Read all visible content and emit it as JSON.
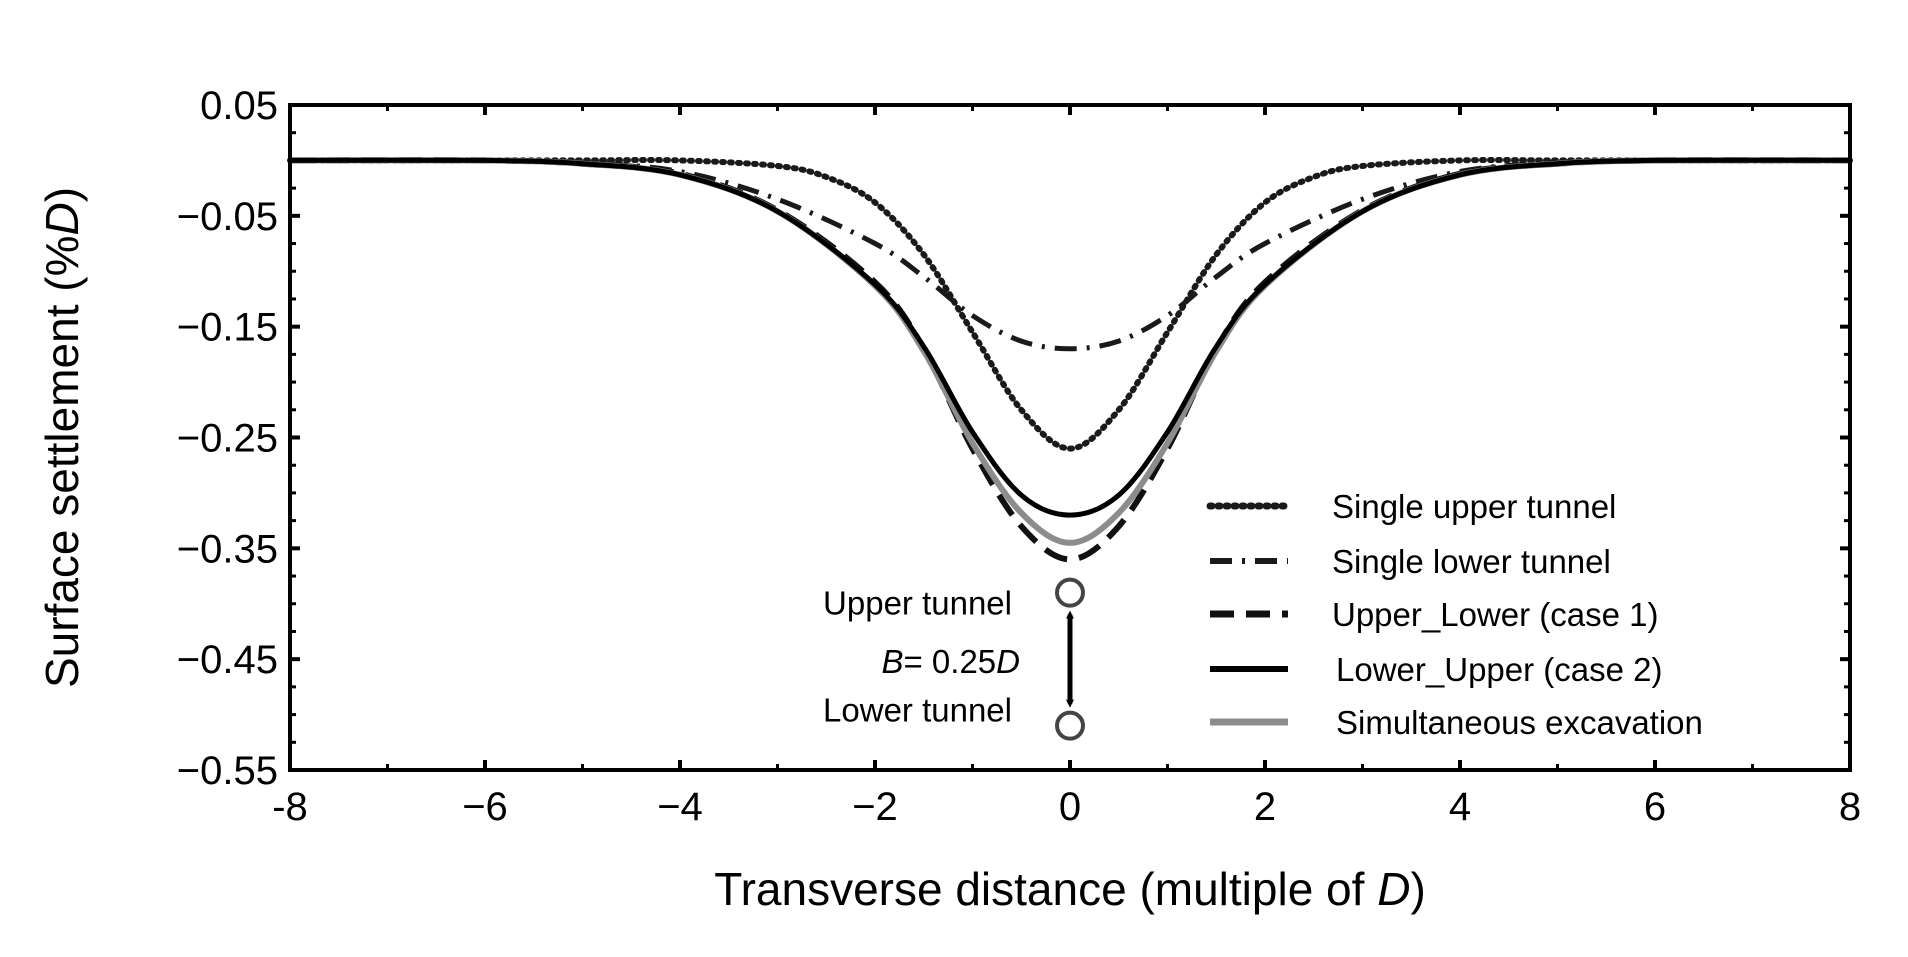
{
  "chart_data": {
    "type": "line",
    "title": "",
    "xlabel": {
      "prefix": "Transverse distance (multiple of ",
      "var": "D",
      "suffix": ")"
    },
    "ylabel": {
      "prefix": "Surface settlement (%",
      "var": "D",
      "suffix": ")"
    },
    "xlim": [
      -8,
      8
    ],
    "ylim": [
      -0.55,
      0.05
    ],
    "xticks": [
      -8,
      -6,
      -4,
      -2,
      0,
      2,
      4,
      6,
      8
    ],
    "xtick_labels": [
      "-8",
      "−6",
      "−4",
      "−2",
      "0",
      "2",
      "4",
      "6",
      "8"
    ],
    "yticks": [
      0.05,
      -0.05,
      -0.15,
      -0.25,
      -0.35,
      -0.45,
      -0.55
    ],
    "ytick_labels": [
      "0.05",
      "−0.05",
      "−0.15",
      "−0.25",
      "−0.35",
      "−0.45",
      "−0.55"
    ],
    "grid": false,
    "legend_position": "bottom-right",
    "series": [
      {
        "name": "Single upper tunnel",
        "style": "dotted",
        "color": "#1a1a1a",
        "x": [
          -8,
          -6,
          -5,
          -4,
          -3,
          -2.5,
          -2,
          -1.5,
          -1,
          -0.5,
          0,
          0.5,
          1,
          1.5,
          2,
          2.5,
          3,
          4,
          5,
          6,
          8
        ],
        "y": [
          0,
          0,
          0,
          0,
          -0.005,
          -0.015,
          -0.038,
          -0.085,
          -0.155,
          -0.225,
          -0.26,
          -0.225,
          -0.155,
          -0.085,
          -0.038,
          -0.015,
          -0.005,
          0,
          0,
          0,
          0
        ]
      },
      {
        "name": "Single lower tunnel",
        "style": "dashdot",
        "color": "#1a1a1a",
        "x": [
          -8,
          -6,
          -5,
          -4,
          -3,
          -2,
          -1.5,
          -1,
          -0.5,
          0,
          0.5,
          1,
          1.5,
          2,
          3,
          4,
          5,
          6,
          8
        ],
        "y": [
          0,
          0,
          -0.002,
          -0.01,
          -0.035,
          -0.075,
          -0.105,
          -0.14,
          -0.163,
          -0.17,
          -0.163,
          -0.14,
          -0.105,
          -0.075,
          -0.035,
          -0.01,
          -0.002,
          0,
          0
        ]
      },
      {
        "name": "Upper_Lower (case 1)",
        "style": "dashed",
        "color": "#111111",
        "x": [
          -8,
          -6,
          -5,
          -4,
          -3,
          -2,
          -1.5,
          -1,
          -0.5,
          0,
          0.5,
          1,
          1.5,
          2,
          3,
          4,
          5,
          6,
          8
        ],
        "y": [
          0,
          0,
          -0.003,
          -0.012,
          -0.045,
          -0.11,
          -0.17,
          -0.26,
          -0.33,
          -0.36,
          -0.33,
          -0.26,
          -0.17,
          -0.11,
          -0.045,
          -0.012,
          -0.003,
          0,
          0
        ]
      },
      {
        "name": "Lower_Upper (case 2)",
        "style": "solid",
        "color": "#000000",
        "x": [
          -8,
          -6,
          -5,
          -4,
          -3,
          -2,
          -1.5,
          -1,
          -0.5,
          0,
          0.5,
          1,
          1.5,
          2,
          3,
          4,
          5,
          6,
          8
        ],
        "y": [
          0,
          0,
          -0.003,
          -0.013,
          -0.046,
          -0.112,
          -0.168,
          -0.245,
          -0.302,
          -0.32,
          -0.302,
          -0.245,
          -0.168,
          -0.112,
          -0.046,
          -0.013,
          -0.003,
          0,
          0
        ]
      },
      {
        "name": "Simultaneous excavation",
        "style": "solid-gray",
        "color": "#8c8c8c",
        "x": [
          -8,
          -6,
          -5,
          -4,
          -3,
          -2,
          -1.5,
          -1,
          -0.5,
          0,
          0.5,
          1,
          1.5,
          2,
          3,
          4,
          5,
          6,
          8
        ],
        "y": [
          0,
          0,
          -0.003,
          -0.013,
          -0.046,
          -0.113,
          -0.172,
          -0.255,
          -0.318,
          -0.345,
          -0.318,
          -0.255,
          -0.172,
          -0.113,
          -0.046,
          -0.013,
          -0.003,
          0,
          0
        ]
      }
    ],
    "annotations": {
      "upper_tunnel_label": "Upper tunnel",
      "lower_tunnel_label": "Lower tunnel",
      "spacing_label": {
        "var_b": "B",
        "eq": "= 0.25",
        "var_d": "D"
      },
      "upper_tunnel_marker": {
        "x": 0,
        "y": -0.39
      },
      "lower_tunnel_marker": {
        "x": 0,
        "y": -0.51
      }
    }
  }
}
